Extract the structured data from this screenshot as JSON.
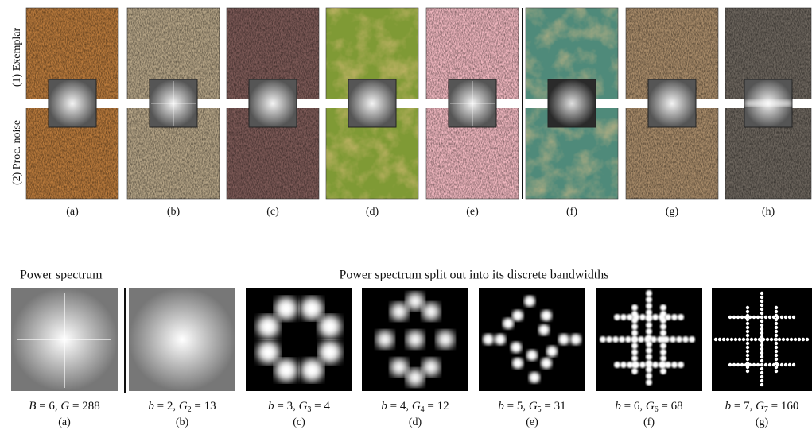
{
  "figure_top": {
    "row_labels": [
      "(1) Exemplar",
      "(2) Proc. noise"
    ],
    "panel_labels": [
      "(a)",
      "(b)",
      "(c)",
      "(d)",
      "(e)",
      "(f)",
      "(g)",
      "(h)"
    ]
  },
  "figure_bottom": {
    "heading_left": "Power spectrum",
    "heading_right": "Power spectrum split out into its discrete bandwidths",
    "panels": [
      {
        "var1": "B",
        "mid": " = 6, ",
        "var2": "G",
        "end": " = 288",
        "label": "(a)"
      },
      {
        "var1": "b",
        "mid": " = 2, ",
        "var2": "G",
        "sub": "2",
        "end": " = 13",
        "label": "(b)"
      },
      {
        "var1": "b",
        "mid": " = 3, ",
        "var2": "G",
        "sub": "3",
        "end": " = 4",
        "label": "(c)"
      },
      {
        "var1": "b",
        "mid": " = 4, ",
        "var2": "G",
        "sub": "4",
        "end": " = 12",
        "label": "(d)"
      },
      {
        "var1": "b",
        "mid": " = 5, ",
        "var2": "G",
        "sub": "5",
        "end": " = 31",
        "label": "(e)"
      },
      {
        "var1": "b",
        "mid": " = 6, ",
        "var2": "G",
        "sub": "6",
        "end": " = 68",
        "label": "(f)"
      },
      {
        "var1": "b",
        "mid": " = 7, ",
        "var2": "G",
        "sub": "7",
        "end": " = 160",
        "label": "(g)"
      }
    ]
  }
}
